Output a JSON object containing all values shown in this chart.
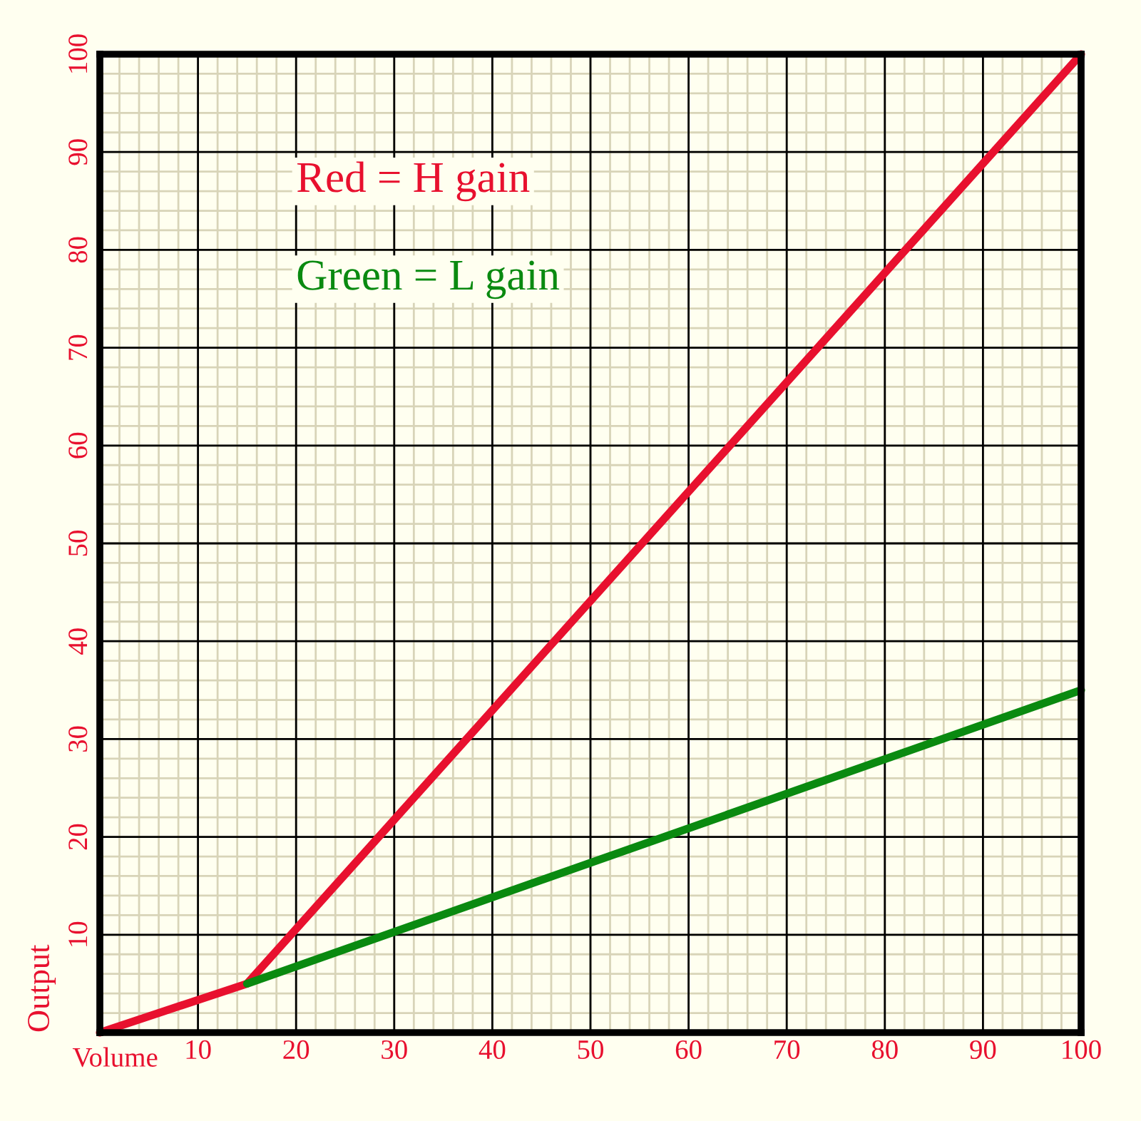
{
  "chart_data": {
    "type": "line",
    "xlabel": "Volume",
    "ylabel": "Output",
    "series": [
      {
        "color": "#e8102e",
        "x": [
          0,
          15,
          100
        ],
        "values": [
          0,
          5,
          100
        ]
      },
      {
        "color": "#0a8a10",
        "x": [
          15,
          100
        ],
        "values": [
          5,
          35
        ]
      }
    ],
    "annotations": [
      "Red = H gain",
      "Green = L gain"
    ],
    "xlim": [
      0,
      100
    ],
    "ylim": [
      0,
      100
    ],
    "xticks": [
      {
        "value": 0,
        "label": null
      },
      10,
      20,
      30,
      40,
      50,
      60,
      70,
      80,
      90,
      100
    ],
    "yticks": [
      {
        "value": 0,
        "label": null
      },
      10,
      20,
      30,
      40,
      50,
      60,
      70,
      80,
      90,
      100
    ],
    "grid": true,
    "marker": "none",
    "line_style": "solid"
  }
}
